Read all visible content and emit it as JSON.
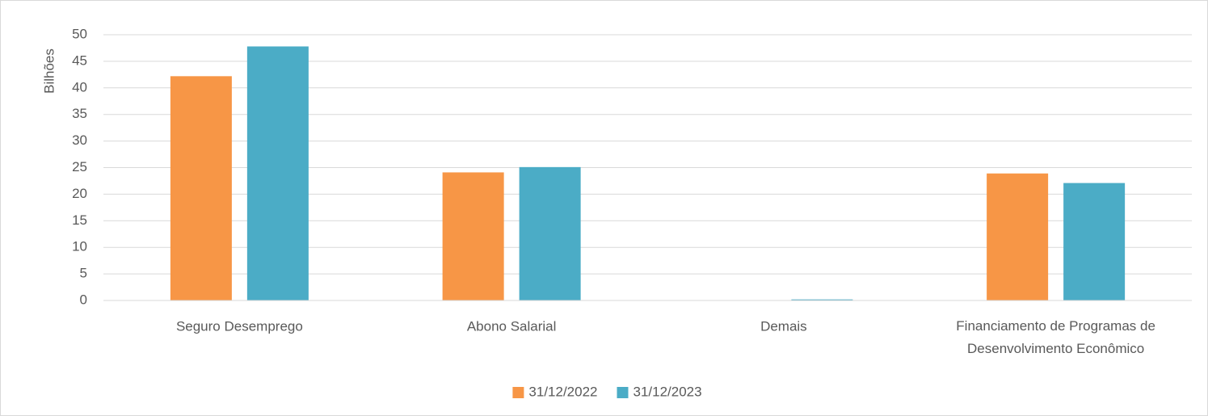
{
  "chart_data": {
    "type": "bar",
    "y_label": "Bilhões",
    "categories": [
      "Seguro Desemprego",
      "Abono Salarial",
      "Demais",
      "Financiamento de Programas de Desenvolvimento Econômico"
    ],
    "series": [
      {
        "name": "31/12/2022",
        "color": "#f79646",
        "values": [
          42.2,
          24.1,
          0,
          23.9
        ]
      },
      {
        "name": "31/12/2023",
        "color": "#4bacc6",
        "values": [
          47.8,
          25.1,
          0.2,
          22.1
        ]
      }
    ],
    "ylim": [
      0,
      50
    ],
    "yticks": [
      0,
      5,
      10,
      15,
      20,
      25,
      30,
      35,
      40,
      45,
      50
    ],
    "grid": true,
    "legend": "bottom"
  }
}
